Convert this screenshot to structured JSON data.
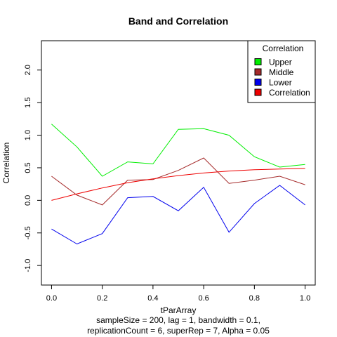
{
  "chart_data": {
    "type": "line",
    "title": "Band and Correlation",
    "xlabel": "tParArray",
    "ylabel": "Correlation",
    "subtitle_lines": [
      "sampleSize = 200, lag = 1, bandwidth = 0.1,",
      "replicationCount = 6, superRep = 7, Alpha = 0.05"
    ],
    "xlim": [
      -0.04,
      1.04
    ],
    "ylim": [
      -1.3,
      2.45
    ],
    "x_ticks": [
      0.0,
      0.2,
      0.4,
      0.6,
      0.8,
      1.0
    ],
    "x_tick_labels": [
      "0.0",
      "0.2",
      "0.4",
      "0.6",
      "0.8",
      "1.0"
    ],
    "y_ticks": [
      -1.0,
      -0.5,
      0.0,
      0.5,
      1.0,
      1.5,
      2.0
    ],
    "y_tick_labels": [
      "-1.0",
      "-0.5",
      "0.0",
      "0.5",
      "1.0",
      "1.5",
      "2.0"
    ],
    "x": [
      0.0,
      0.1,
      0.2,
      0.3,
      0.4,
      0.5,
      0.6,
      0.7,
      0.8,
      0.9,
      1.0
    ],
    "series": [
      {
        "name": "Upper",
        "color": "#00ee00",
        "values": [
          1.17,
          0.82,
          0.37,
          0.59,
          0.56,
          1.09,
          1.1,
          1.0,
          0.67,
          0.51,
          0.55
        ]
      },
      {
        "name": "Middle",
        "color": "#a52a2a",
        "values": [
          0.37,
          0.08,
          -0.07,
          0.31,
          0.32,
          0.46,
          0.65,
          0.26,
          0.31,
          0.37,
          0.24
        ]
      },
      {
        "name": "Lower",
        "color": "#0000ee",
        "values": [
          -0.44,
          -0.67,
          -0.51,
          0.04,
          0.06,
          -0.16,
          0.2,
          -0.49,
          -0.05,
          0.23,
          -0.07
        ]
      },
      {
        "name": "Correlation",
        "color": "#ee0000",
        "values": [
          0.0,
          0.1,
          0.19,
          0.27,
          0.33,
          0.38,
          0.42,
          0.45,
          0.47,
          0.48,
          0.49
        ]
      }
    ],
    "legend": {
      "title": "Correlation",
      "position": "top-right",
      "entries": [
        {
          "label": "Upper",
          "color": "#00ee00"
        },
        {
          "label": "Middle",
          "color": "#a52a2a"
        },
        {
          "label": "Lower",
          "color": "#0000ee"
        },
        {
          "label": "Correlation",
          "color": "#ee0000"
        }
      ]
    },
    "grid": false
  }
}
